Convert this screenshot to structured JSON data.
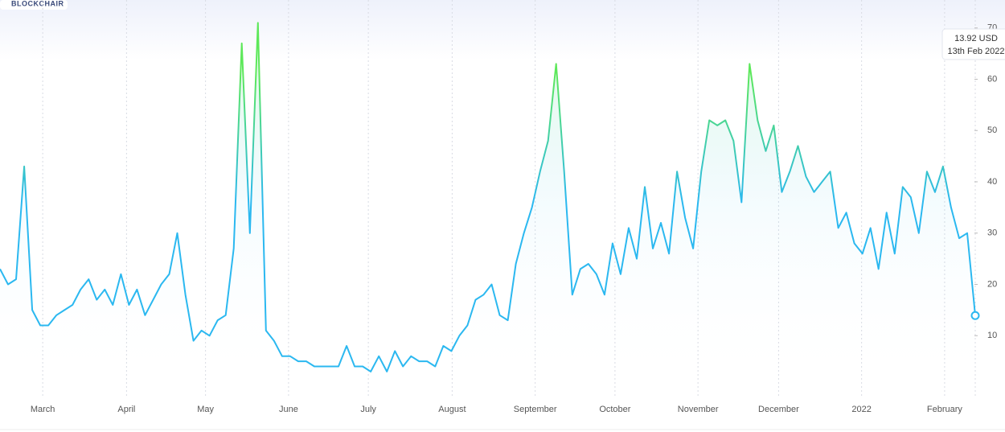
{
  "brand": "BLOCKCHAIR",
  "chart_data": {
    "type": "line",
    "values": [
      23,
      20,
      21,
      43,
      15,
      12,
      12,
      14,
      15,
      16,
      19,
      21,
      17,
      19,
      16,
      22,
      16,
      19,
      14,
      17,
      20,
      22,
      30,
      18,
      9,
      11,
      10,
      13,
      14,
      27,
      67,
      30,
      71,
      11,
      9,
      6,
      6,
      5,
      5,
      4,
      4,
      4,
      4,
      8,
      4,
      4,
      3,
      6,
      3,
      7,
      4,
      6,
      5,
      5,
      4,
      8,
      7,
      10,
      12,
      17,
      18,
      20,
      14,
      13,
      24,
      30,
      35,
      42,
      48,
      63,
      42,
      18,
      23,
      24,
      22,
      18,
      28,
      22,
      31,
      25,
      39,
      27,
      32,
      26,
      42,
      33,
      27,
      42,
      52,
      51,
      52,
      48,
      36,
      63,
      52,
      46,
      51,
      38,
      42,
      47,
      41,
      38,
      40,
      42,
      31,
      34,
      28,
      26,
      31,
      23,
      34,
      26,
      39,
      37,
      30,
      42,
      38,
      43,
      35,
      29,
      30,
      13.92
    ],
    "colors": {
      "low": "#2bb8f0",
      "high": "#5de85a"
    },
    "xlim": [
      0,
      121
    ],
    "xticks": [
      {
        "value": 5.3,
        "label": "March"
      },
      {
        "value": 15.7,
        "label": "April"
      },
      {
        "value": 25.5,
        "label": "May"
      },
      {
        "value": 35.8,
        "label": "June"
      },
      {
        "value": 45.7,
        "label": "July"
      },
      {
        "value": 56.1,
        "label": "August"
      },
      {
        "value": 66.4,
        "label": "September"
      },
      {
        "value": 76.3,
        "label": "October"
      },
      {
        "value": 86.6,
        "label": "November"
      },
      {
        "value": 96.6,
        "label": "December"
      },
      {
        "value": 106.9,
        "label": "2022"
      },
      {
        "value": 117.2,
        "label": "February"
      }
    ],
    "ylim": [
      0,
      72
    ],
    "yticks": [
      10,
      20,
      30,
      40,
      50,
      60,
      70
    ],
    "grid": "x",
    "tooltip": {
      "label": "13.92 USD",
      "date": "13th Feb 2022"
    }
  }
}
